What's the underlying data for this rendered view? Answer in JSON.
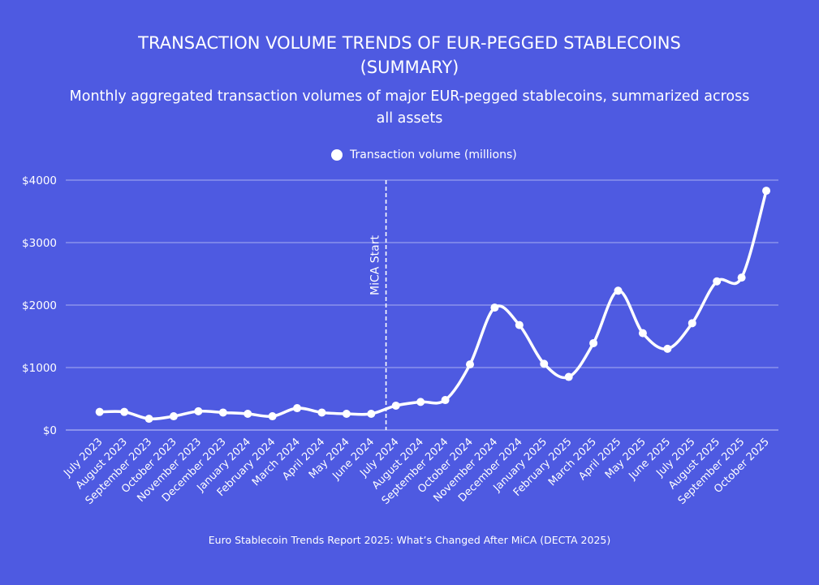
{
  "colors": {
    "background": "#4e5ae1",
    "line": "#ffffff",
    "grid": "#8a92ec"
  },
  "chart_data": {
    "type": "line",
    "title": "TRANSACTION VOLUME TRENDS OF EUR-PEGGED STABLECOINS (SUMMARY)",
    "subtitle": "Monthly aggregated transaction volumes of major EUR-pegged stablecoins, summarized across all assets",
    "source": "Euro Stablecoin Trends Report 2025: What’s Changed After MiCA (DECTA 2025)",
    "legend_position": "top",
    "grid": true,
    "categories": [
      "July 2023",
      "August 2023",
      "September 2023",
      "October 2023",
      "November 2023",
      "December 2023",
      "January 2024",
      "February 2024",
      "March 2024",
      "April 2024",
      "May 2024",
      "June 2024",
      "July 2024",
      "August 2024",
      "September 2024",
      "October 2024",
      "November 2024",
      "December 2024",
      "January 2025",
      "February 2025",
      "March 2025",
      "April 2025",
      "May 2025",
      "June 2025",
      "July 2025",
      "August 2025",
      "September 2025",
      "October 2025"
    ],
    "series": [
      {
        "name": "Transaction volume (millions)",
        "values": [
          290,
          290,
          180,
          220,
          300,
          280,
          260,
          220,
          350,
          280,
          260,
          260,
          390,
          450,
          480,
          1050,
          1960,
          1680,
          1060,
          850,
          1390,
          2230,
          1550,
          1300,
          1710,
          2380,
          2440,
          3830
        ]
      }
    ],
    "ylim": [
      0,
      4000
    ],
    "yticks": [
      0,
      1000,
      2000,
      3000,
      4000
    ],
    "ytick_labels": [
      "$0",
      "$1000",
      "$2000",
      "$3000",
      "$4000"
    ],
    "annotations": [
      {
        "type": "vertical-dashed-line",
        "label": "MiCA Start",
        "between": [
          "June 2024",
          "July 2024"
        ]
      }
    ]
  }
}
